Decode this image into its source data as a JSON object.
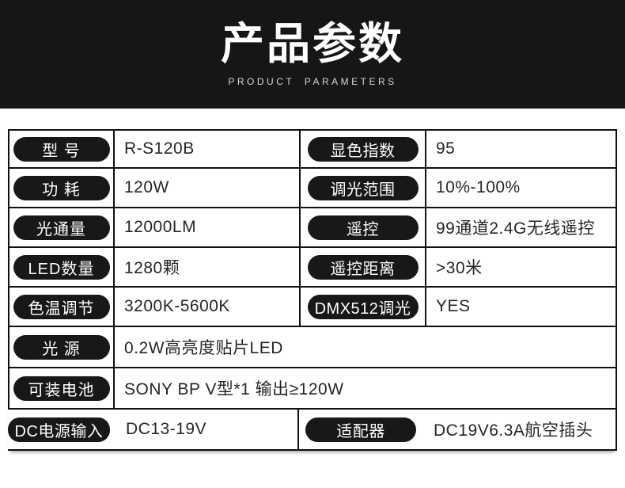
{
  "header": {
    "title": "产品参数",
    "subtitle": "PRODUCT PARAMETERS"
  },
  "table": {
    "rows": [
      {
        "layout": "split",
        "left_label": "型 号",
        "left_value": "R-S120B",
        "right_label": "显色指数",
        "right_value": "95"
      },
      {
        "layout": "split",
        "left_label": "功 耗",
        "left_value": "120W",
        "right_label": "调光范围",
        "right_value": "10%-100%"
      },
      {
        "layout": "split",
        "left_label": "光通量",
        "left_value": "12000LM",
        "right_label": "遥控",
        "right_value": "99通道2.4G无线遥控"
      },
      {
        "layout": "split",
        "left_label": "LED数量",
        "left_value": "1280颗",
        "right_label": "遥控距离",
        "right_value": ">30米"
      },
      {
        "layout": "split",
        "left_label": "色温调节",
        "left_value": "3200K-5600K",
        "right_label": "DMX512调光",
        "right_value": "YES"
      },
      {
        "layout": "full",
        "left_label": "光 源",
        "left_value": "0.2W高亮度贴片LED"
      },
      {
        "layout": "full",
        "left_label": "可装电池",
        "left_value": "SONY BP V型*1 输出≥120W"
      },
      {
        "layout": "open",
        "left_label": "DC电源输入",
        "left_value": "DC13-19V",
        "right_label": "适配器",
        "right_value": "DC19V6.3A航空插头"
      }
    ]
  },
  "colors": {
    "banner_bg": "#161616",
    "title_text": "#ffffff",
    "subtitle_text": "#d6d6d6",
    "pill_bg": "#181818",
    "pill_text": "#ffffff",
    "border": "#101010",
    "value_text": "#262626",
    "page_bg": "#ffffff"
  }
}
